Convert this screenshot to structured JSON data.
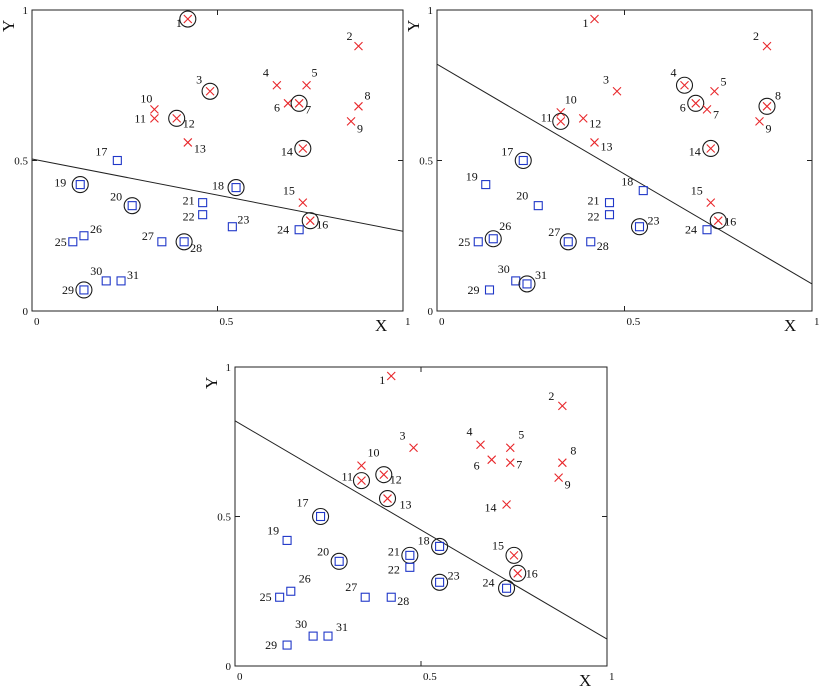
{
  "chart_data": [
    {
      "type": "scatter",
      "xlabel": "X",
      "ylabel": "Y",
      "xlim": [
        0,
        1
      ],
      "ylim": [
        0,
        1
      ],
      "x_ticks": [
        "0",
        "0.5",
        "1"
      ],
      "y_ticks": [
        "0",
        "0.5",
        "1"
      ],
      "grid": false,
      "separator_line": {
        "x": [
          0,
          1
        ],
        "y": [
          0.505,
          0.265
        ]
      },
      "series": [
        {
          "marker": "cross",
          "color": "#e8262a",
          "points": [
            {
              "id": "1",
              "x": 0.42,
              "y": 0.97
            },
            {
              "id": "2",
              "x": 0.88,
              "y": 0.88
            },
            {
              "id": "3",
              "x": 0.48,
              "y": 0.73
            },
            {
              "id": "4",
              "x": 0.66,
              "y": 0.75
            },
            {
              "id": "5",
              "x": 0.74,
              "y": 0.75
            },
            {
              "id": "6",
              "x": 0.69,
              "y": 0.69
            },
            {
              "id": "7",
              "x": 0.72,
              "y": 0.69
            },
            {
              "id": "8",
              "x": 0.88,
              "y": 0.68
            },
            {
              "id": "9",
              "x": 0.86,
              "y": 0.63
            },
            {
              "id": "10",
              "x": 0.33,
              "y": 0.67
            },
            {
              "id": "11",
              "x": 0.33,
              "y": 0.64
            },
            {
              "id": "12",
              "x": 0.39,
              "y": 0.64
            },
            {
              "id": "13",
              "x": 0.42,
              "y": 0.56
            },
            {
              "id": "14",
              "x": 0.73,
              "y": 0.54
            },
            {
              "id": "15",
              "x": 0.73,
              "y": 0.36
            },
            {
              "id": "16",
              "x": 0.75,
              "y": 0.3
            }
          ]
        },
        {
          "marker": "square",
          "color": "#1f37c8",
          "points": [
            {
              "id": "17",
              "x": 0.23,
              "y": 0.5
            },
            {
              "id": "18",
              "x": 0.55,
              "y": 0.41
            },
            {
              "id": "19",
              "x": 0.13,
              "y": 0.42
            },
            {
              "id": "20",
              "x": 0.27,
              "y": 0.35
            },
            {
              "id": "21",
              "x": 0.46,
              "y": 0.36
            },
            {
              "id": "22",
              "x": 0.46,
              "y": 0.32
            },
            {
              "id": "23",
              "x": 0.54,
              "y": 0.28
            },
            {
              "id": "24",
              "x": 0.72,
              "y": 0.27
            },
            {
              "id": "25",
              "x": 0.11,
              "y": 0.23
            },
            {
              "id": "26",
              "x": 0.14,
              "y": 0.25
            },
            {
              "id": "27",
              "x": 0.35,
              "y": 0.23
            },
            {
              "id": "28",
              "x": 0.41,
              "y": 0.23
            },
            {
              "id": "29",
              "x": 0.14,
              "y": 0.07
            },
            {
              "id": "30",
              "x": 0.2,
              "y": 0.1
            },
            {
              "id": "31",
              "x": 0.24,
              "y": 0.1
            }
          ]
        }
      ],
      "circled_points": [
        "1",
        "3",
        "7",
        "12",
        "14",
        "16",
        "18",
        "19",
        "20",
        "28",
        "29"
      ]
    },
    {
      "type": "scatter",
      "xlabel": "X",
      "ylabel": "Y",
      "xlim": [
        0,
        1
      ],
      "ylim": [
        0,
        1
      ],
      "x_ticks": [
        "0",
        "0.5",
        "1"
      ],
      "y_ticks": [
        "0",
        "0.5",
        "1"
      ],
      "grid": false,
      "separator_line": {
        "x": [
          0,
          1
        ],
        "y": [
          0.82,
          0.09
        ]
      },
      "series": [
        {
          "marker": "cross",
          "color": "#e8262a",
          "points": [
            {
              "id": "1",
              "x": 0.42,
              "y": 0.97
            },
            {
              "id": "2",
              "x": 0.88,
              "y": 0.88
            },
            {
              "id": "3",
              "x": 0.48,
              "y": 0.73
            },
            {
              "id": "4",
              "x": 0.66,
              "y": 0.75
            },
            {
              "id": "5",
              "x": 0.74,
              "y": 0.73
            },
            {
              "id": "6",
              "x": 0.69,
              "y": 0.69
            },
            {
              "id": "7",
              "x": 0.72,
              "y": 0.67
            },
            {
              "id": "8",
              "x": 0.88,
              "y": 0.68
            },
            {
              "id": "9",
              "x": 0.86,
              "y": 0.63
            },
            {
              "id": "10",
              "x": 0.33,
              "y": 0.66
            },
            {
              "id": "11",
              "x": 0.33,
              "y": 0.63
            },
            {
              "id": "12",
              "x": 0.39,
              "y": 0.64
            },
            {
              "id": "13",
              "x": 0.42,
              "y": 0.56
            },
            {
              "id": "14",
              "x": 0.73,
              "y": 0.54
            },
            {
              "id": "15",
              "x": 0.73,
              "y": 0.36
            },
            {
              "id": "16",
              "x": 0.75,
              "y": 0.3
            }
          ]
        },
        {
          "marker": "square",
          "color": "#1f37c8",
          "points": [
            {
              "id": "17",
              "x": 0.23,
              "y": 0.5
            },
            {
              "id": "18",
              "x": 0.55,
              "y": 0.4
            },
            {
              "id": "19",
              "x": 0.13,
              "y": 0.42
            },
            {
              "id": "20",
              "x": 0.27,
              "y": 0.35
            },
            {
              "id": "21",
              "x": 0.46,
              "y": 0.36
            },
            {
              "id": "22",
              "x": 0.46,
              "y": 0.32
            },
            {
              "id": "23",
              "x": 0.54,
              "y": 0.28
            },
            {
              "id": "24",
              "x": 0.72,
              "y": 0.27
            },
            {
              "id": "25",
              "x": 0.11,
              "y": 0.23
            },
            {
              "id": "26",
              "x": 0.15,
              "y": 0.24
            },
            {
              "id": "27",
              "x": 0.35,
              "y": 0.23
            },
            {
              "id": "28",
              "x": 0.41,
              "y": 0.23
            },
            {
              "id": "29",
              "x": 0.14,
              "y": 0.07
            },
            {
              "id": "30",
              "x": 0.21,
              "y": 0.1
            },
            {
              "id": "31",
              "x": 0.24,
              "y": 0.09
            }
          ]
        }
      ],
      "circled_points": [
        "4",
        "6",
        "8",
        "11",
        "14",
        "16",
        "17",
        "23",
        "26",
        "27",
        "31"
      ]
    },
    {
      "type": "scatter",
      "xlabel": "X",
      "ylabel": "Y",
      "xlim": [
        0,
        1
      ],
      "ylim": [
        0,
        1
      ],
      "x_ticks": [
        "0",
        "0.5",
        "1"
      ],
      "y_ticks": [
        "0",
        "0.5",
        "1"
      ],
      "grid": false,
      "separator_line": {
        "x": [
          0,
          1
        ],
        "y": [
          0.82,
          0.09
        ]
      },
      "series": [
        {
          "marker": "cross",
          "color": "#e8262a",
          "points": [
            {
              "id": "1",
              "x": 0.42,
              "y": 0.97
            },
            {
              "id": "2",
              "x": 0.88,
              "y": 0.87
            },
            {
              "id": "3",
              "x": 0.48,
              "y": 0.73
            },
            {
              "id": "4",
              "x": 0.66,
              "y": 0.74
            },
            {
              "id": "5",
              "x": 0.74,
              "y": 0.73
            },
            {
              "id": "6",
              "x": 0.69,
              "y": 0.69
            },
            {
              "id": "7",
              "x": 0.74,
              "y": 0.68
            },
            {
              "id": "8",
              "x": 0.88,
              "y": 0.68
            },
            {
              "id": "9",
              "x": 0.87,
              "y": 0.63
            },
            {
              "id": "10",
              "x": 0.34,
              "y": 0.67
            },
            {
              "id": "11",
              "x": 0.34,
              "y": 0.62
            },
            {
              "id": "12",
              "x": 0.4,
              "y": 0.64
            },
            {
              "id": "13",
              "x": 0.41,
              "y": 0.56
            },
            {
              "id": "14",
              "x": 0.73,
              "y": 0.54
            },
            {
              "id": "15",
              "x": 0.75,
              "y": 0.37
            },
            {
              "id": "16",
              "x": 0.76,
              "y": 0.31
            }
          ]
        },
        {
          "marker": "square",
          "color": "#1f37c8",
          "points": [
            {
              "id": "17",
              "x": 0.23,
              "y": 0.5
            },
            {
              "id": "18",
              "x": 0.55,
              "y": 0.4
            },
            {
              "id": "19",
              "x": 0.14,
              "y": 0.42
            },
            {
              "id": "20",
              "x": 0.28,
              "y": 0.35
            },
            {
              "id": "21",
              "x": 0.47,
              "y": 0.37
            },
            {
              "id": "22",
              "x": 0.47,
              "y": 0.33
            },
            {
              "id": "23",
              "x": 0.55,
              "y": 0.28
            },
            {
              "id": "24",
              "x": 0.73,
              "y": 0.26
            },
            {
              "id": "25",
              "x": 0.12,
              "y": 0.23
            },
            {
              "id": "26",
              "x": 0.15,
              "y": 0.25
            },
            {
              "id": "27",
              "x": 0.35,
              "y": 0.23
            },
            {
              "id": "28",
              "x": 0.42,
              "y": 0.23
            },
            {
              "id": "29",
              "x": 0.14,
              "y": 0.07
            },
            {
              "id": "30",
              "x": 0.21,
              "y": 0.1
            },
            {
              "id": "31",
              "x": 0.25,
              "y": 0.1
            }
          ]
        }
      ],
      "circled_points": [
        "11",
        "12",
        "13",
        "15",
        "16",
        "17",
        "18",
        "20",
        "21",
        "23",
        "24"
      ]
    }
  ]
}
